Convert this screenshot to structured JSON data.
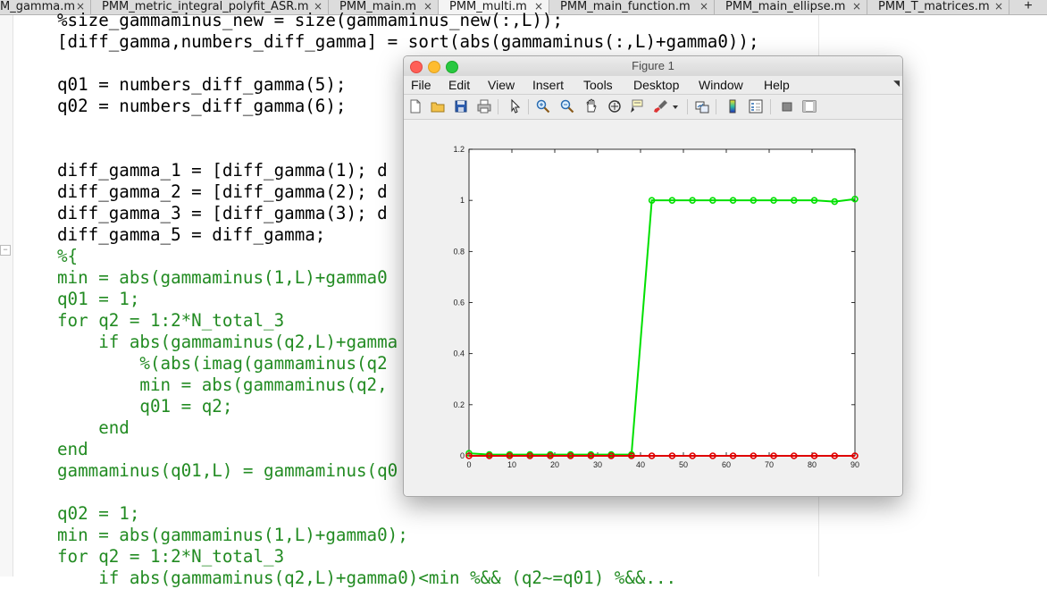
{
  "tabs": [
    {
      "label": "M_gamma.m",
      "active": false
    },
    {
      "label": "PMM_metric_integral_polyfit_ASR.m",
      "active": false
    },
    {
      "label": "PMM_main.m",
      "active": false
    },
    {
      "label": "PMM_multi.m",
      "active": true
    },
    {
      "label": "PMM_main_function.m",
      "active": false
    },
    {
      "label": "PMM_main_ellipse.m",
      "active": false
    },
    {
      "label": "PMM_T_matrices.m",
      "active": false
    }
  ],
  "tab_close_glyph": "×",
  "tab_plus_glyph": "+",
  "editor": {
    "lines": [
      {
        "text": "%size_gammaminus_new = size(gammaminus_new(:,L));",
        "type": "code"
      },
      {
        "text": "[diff_gamma,numbers_diff_gamma] = sort(abs(gammaminus(:,L)+gamma0));",
        "type": "code"
      },
      {
        "text": "",
        "type": "code"
      },
      {
        "text": "q01 = numbers_diff_gamma(5);",
        "type": "code"
      },
      {
        "text": "q02 = numbers_diff_gamma(6);",
        "type": "code"
      },
      {
        "text": "",
        "type": "code"
      },
      {
        "text": "",
        "type": "code"
      },
      {
        "text": "diff_gamma_1 = [diff_gamma(1); d",
        "type": "code"
      },
      {
        "text": "diff_gamma_2 = [diff_gamma(2); d",
        "type": "code"
      },
      {
        "text": "diff_gamma_3 = [diff_gamma(3); d",
        "type": "code"
      },
      {
        "text": "diff_gamma_5 = diff_gamma;",
        "type": "code"
      },
      {
        "text": "%{",
        "type": "comment"
      },
      {
        "text": "min = abs(gammaminus(1,L)+gamma0",
        "type": "comment"
      },
      {
        "text": "q01 = 1;",
        "type": "comment"
      },
      {
        "text": "for q2 = 1:2*N_total_3",
        "type": "comment"
      },
      {
        "text": "    if abs(gammaminus(q2,L)+gamma",
        "type": "comment"
      },
      {
        "text": "        %(abs(imag(gammaminus(q2",
        "type": "comment"
      },
      {
        "text": "        min = abs(gammaminus(q2,",
        "type": "comment"
      },
      {
        "text": "        q01 = q2;",
        "type": "comment"
      },
      {
        "text": "    end",
        "type": "comment"
      },
      {
        "text": "end",
        "type": "comment"
      },
      {
        "text": "gammaminus(q01,L) = gammaminus(q0",
        "type": "comment"
      },
      {
        "text": "",
        "type": "comment"
      },
      {
        "text": "q02 = 1;",
        "type": "comment"
      },
      {
        "text": "min = abs(gammaminus(1,L)+gamma0);",
        "type": "comment"
      },
      {
        "text": "for q2 = 1:2*N_total_3",
        "type": "comment"
      },
      {
        "text": "    if abs(gammaminus(q2,L)+gamma0)<min %&& (q2~=q01) %&&...",
        "type": "comment"
      }
    ],
    "fold_glyph": "−"
  },
  "figure": {
    "title": "Figure 1",
    "menu": [
      "File",
      "Edit",
      "View",
      "Insert",
      "Tools",
      "Desktop",
      "Window",
      "Help"
    ],
    "menu_resize_glyph": "◥",
    "toolbar_icons": [
      "new-figure-icon",
      "open-file-icon",
      "save-icon",
      "print-icon",
      "pointer-icon",
      "zoom-in-icon",
      "zoom-out-icon",
      "pan-icon",
      "rotate-3d-icon",
      "data-cursor-icon",
      "brush-icon",
      "brush-dropdown-icon",
      "link-plot-icon",
      "colorbar-icon",
      "legend-icon",
      "hide-plot-tools-icon",
      "show-plot-tools-icon"
    ]
  },
  "chart_data": {
    "type": "line",
    "title": "",
    "xlabel": "",
    "ylabel": "",
    "xlim": [
      0,
      90
    ],
    "ylim": [
      0,
      1.2
    ],
    "xticks": [
      "0",
      "10",
      "20",
      "30",
      "40",
      "50",
      "60",
      "70",
      "80",
      "90"
    ],
    "yticks": [
      "0",
      "0.2",
      "0.4",
      "0.6",
      "0.8",
      "1",
      "1.2"
    ],
    "grid": false,
    "series": [
      {
        "color": "#00e000",
        "x": [
          0,
          4.74,
          9.47,
          14.21,
          18.95,
          23.68,
          28.42,
          33.16,
          37.89,
          42.63,
          47.37,
          52.11,
          56.84,
          61.58,
          66.32,
          71.05,
          75.79,
          80.53,
          85.26,
          90
        ],
        "y": [
          0.01,
          0.005,
          0.005,
          0.005,
          0.005,
          0.005,
          0.005,
          0.005,
          0.005,
          1.0,
          1.0,
          1.0,
          1.0,
          1.0,
          1.0,
          1.0,
          1.0,
          1.0,
          0.995,
          1.005
        ]
      },
      {
        "color": "#e00000",
        "x": [
          0,
          4.74,
          9.47,
          14.21,
          18.95,
          23.68,
          28.42,
          33.16,
          37.89,
          42.63,
          47.37,
          52.11,
          56.84,
          61.58,
          66.32,
          71.05,
          75.79,
          80.53,
          85.26,
          90
        ],
        "y": [
          0,
          0,
          0,
          0,
          0,
          0,
          0,
          0,
          0,
          0,
          0,
          0,
          0,
          0,
          0,
          0,
          0,
          0,
          0,
          0
        ]
      }
    ]
  }
}
